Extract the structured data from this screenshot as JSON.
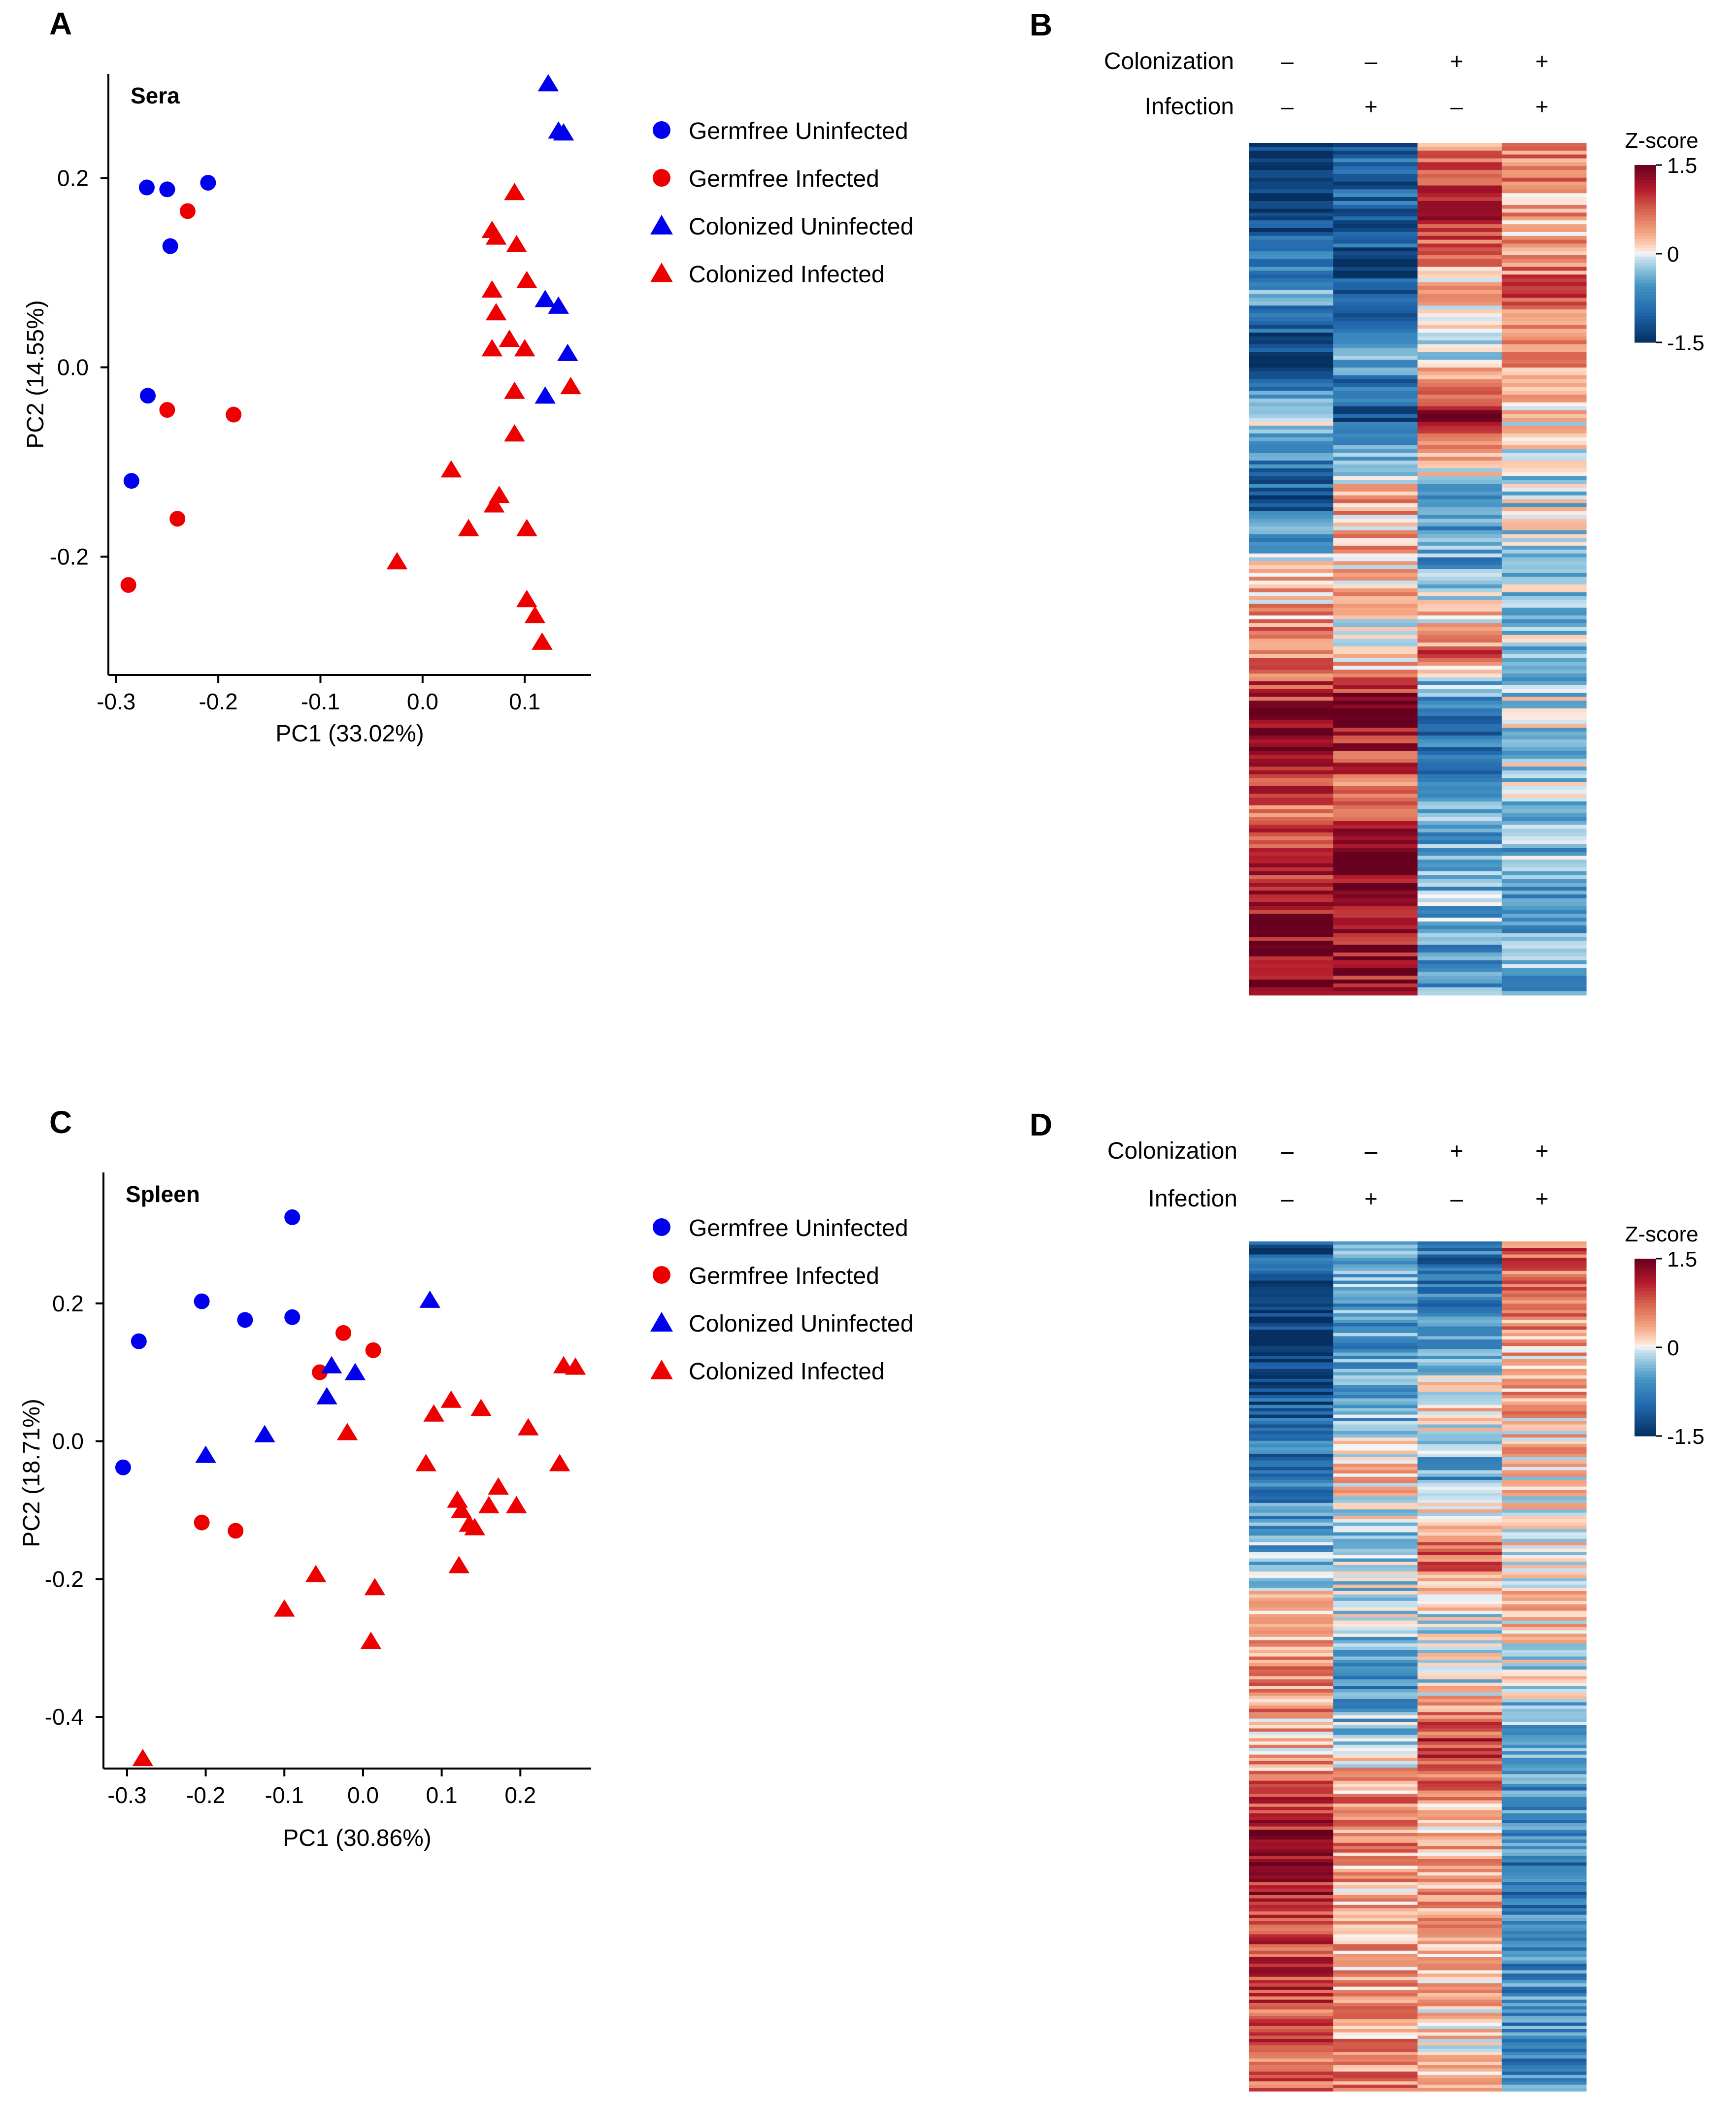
{
  "panels": {
    "A": {
      "letter": "A"
    },
    "B": {
      "letter": "B"
    },
    "C": {
      "letter": "C"
    },
    "D": {
      "letter": "D"
    }
  },
  "colors": {
    "germfree_uninfected": "#0000ee",
    "germfree_infected": "#ee0000",
    "colonized_uninfected": "#0000ee",
    "colonized_infected": "#ee0000",
    "heat_high": "#67001f",
    "heat_mid": "#f7f7f7",
    "heat_low": "#053061"
  },
  "legend": {
    "items": [
      {
        "label": "Germfree Uninfected",
        "shape": "circle",
        "color": "#0000ee"
      },
      {
        "label": "Germfree Infected",
        "shape": "circle",
        "color": "#ee0000"
      },
      {
        "label": "Colonized Uninfected",
        "shape": "triangle",
        "color": "#0000ee"
      },
      {
        "label": "Colonized Infected",
        "shape": "triangle",
        "color": "#ee0000"
      }
    ]
  },
  "chart_data": [
    {
      "panel": "A",
      "type": "scatter",
      "title": "Sera",
      "xlabel": "PC1 (33.02%)",
      "ylabel": "PC2 (14.55%)",
      "xlim": [
        -0.31,
        0.165
      ],
      "ylim": [
        -0.325,
        0.31
      ],
      "xticks": [
        -0.3,
        -0.2,
        -0.1,
        0.0,
        0.1
      ],
      "xtick_labels": [
        "-0.3",
        "-0.2",
        "-0.1",
        "0.0",
        "0.1"
      ],
      "yticks": [
        -0.2,
        0.0,
        0.2
      ],
      "ytick_labels": [
        "-0.2",
        "0.0",
        "0.2"
      ],
      "series": [
        {
          "name": "Germfree Uninfected",
          "shape": "circle",
          "color": "#0000ee",
          "x": [
            -0.27,
            -0.25,
            -0.21,
            -0.247,
            -0.269,
            -0.285
          ],
          "y": [
            0.19,
            0.188,
            0.195,
            0.128,
            -0.03,
            -0.12
          ]
        },
        {
          "name": "Germfree Infected",
          "shape": "circle",
          "color": "#ee0000",
          "x": [
            -0.23,
            -0.25,
            -0.185,
            -0.24,
            -0.288
          ],
          "y": [
            0.165,
            -0.045,
            -0.05,
            -0.16,
            -0.23
          ]
        },
        {
          "name": "Colonized Uninfected",
          "shape": "triangle",
          "color": "#0000ee",
          "x": [
            0.123,
            0.133,
            0.138,
            0.12,
            0.133,
            0.142,
            0.12
          ],
          "y": [
            0.3,
            0.25,
            0.248,
            0.072,
            0.065,
            0.015,
            -0.03
          ]
        },
        {
          "name": "Colonized Infected",
          "shape": "triangle",
          "color": "#ee0000",
          "x": [
            0.09,
            0.068,
            0.072,
            0.092,
            0.068,
            0.102,
            0.072,
            0.085,
            0.068,
            0.1,
            0.09,
            0.145,
            0.09,
            0.028,
            0.075,
            0.07,
            0.045,
            0.102,
            -0.025,
            0.102,
            0.11,
            0.117
          ],
          "y": [
            0.185,
            0.145,
            0.138,
            0.13,
            0.082,
            0.092,
            0.058,
            0.03,
            0.02,
            0.02,
            -0.025,
            -0.02,
            -0.07,
            -0.108,
            -0.135,
            -0.145,
            -0.17,
            -0.17,
            -0.205,
            -0.245,
            -0.262,
            -0.29
          ]
        }
      ]
    },
    {
      "panel": "C",
      "type": "scatter",
      "title": "Spleen",
      "xlabel": "PC1 (30.86%)",
      "ylabel": "PC2 (18.71%)",
      "xlim": [
        -0.33,
        0.29
      ],
      "ylim": [
        -0.475,
        0.39
      ],
      "xticks": [
        -0.3,
        -0.2,
        -0.1,
        0.0,
        0.1,
        0.2
      ],
      "xtick_labels": [
        "-0.3",
        "-0.2",
        "-0.1",
        "0.0",
        "0.1",
        "0.2"
      ],
      "yticks": [
        -0.4,
        -0.2,
        0.0,
        0.2
      ],
      "yticks_note": "",
      "ytick_labels": [
        "-0.4",
        "-0.2",
        "0.0",
        "0.2"
      ],
      "series": [
        {
          "name": "Germfree Uninfected",
          "shape": "circle",
          "color": "#0000ee",
          "x": [
            -0.09,
            -0.205,
            -0.09,
            -0.15,
            -0.285,
            -0.305
          ],
          "y": [
            0.325,
            0.203,
            0.18,
            0.176,
            0.145,
            -0.038
          ]
        },
        {
          "name": "Germfree Infected",
          "shape": "circle",
          "color": "#ee0000",
          "x": [
            -0.025,
            0.013,
            -0.055,
            -0.205,
            -0.162
          ],
          "y": [
            0.157,
            0.132,
            0.1,
            -0.118,
            -0.13
          ]
        },
        {
          "name": "Colonized Uninfected",
          "shape": "triangle",
          "color": "#0000ee",
          "x": [
            0.085,
            -0.04,
            -0.01,
            -0.046,
            -0.125,
            -0.2
          ],
          "y": [
            0.205,
            0.11,
            0.1,
            0.065,
            0.01,
            -0.02
          ]
        },
        {
          "name": "Colonized Infected",
          "shape": "triangle",
          "color": "#ee0000",
          "x": [
            0.255,
            0.27,
            0.112,
            0.09,
            0.15,
            0.21,
            -0.02,
            0.08,
            0.25,
            0.172,
            0.12,
            0.195,
            0.16,
            0.125,
            0.135,
            0.142,
            0.122,
            -0.06,
            0.015,
            -0.1,
            0.01,
            -0.28
          ],
          "y": [
            0.11,
            0.108,
            0.06,
            0.04,
            0.048,
            0.02,
            0.013,
            -0.032,
            -0.032,
            -0.066,
            -0.085,
            -0.093,
            -0.093,
            -0.1,
            -0.12,
            -0.125,
            -0.18,
            -0.193,
            -0.212,
            -0.243,
            -0.29,
            -0.46
          ]
        }
      ]
    },
    {
      "panel": "B",
      "type": "heatmap",
      "header_rows": [
        {
          "label": "Colonization",
          "values": [
            "–",
            "–",
            "+",
            "+"
          ]
        },
        {
          "label": "Infection",
          "values": [
            "–",
            "+",
            "–",
            "+"
          ]
        }
      ],
      "colorbar": {
        "title": "Z-score",
        "range": [
          -1.5,
          1.5
        ],
        "ticks": [
          1.5,
          0,
          -1.5
        ],
        "tick_labels": [
          "1.5",
          "0",
          "-1.5"
        ]
      },
      "columns": 4,
      "profile_rows": 220,
      "profiles": [
        [
          [
            0,
            -1.5
          ],
          [
            0.08,
            -1.4
          ],
          [
            0.18,
            -0.5
          ],
          [
            0.25,
            -1.5
          ],
          [
            0.32,
            -0.2
          ],
          [
            0.42,
            -1.2
          ],
          [
            0.5,
            0.2
          ],
          [
            0.6,
            0.6
          ],
          [
            0.7,
            1.4
          ],
          [
            0.78,
            0.6
          ],
          [
            0.85,
            1.1
          ],
          [
            1,
            1.5
          ]
        ],
        [
          [
            0,
            -1.1
          ],
          [
            0.08,
            -1.0
          ],
          [
            0.18,
            -1.3
          ],
          [
            0.25,
            -0.6
          ],
          [
            0.32,
            -1.2
          ],
          [
            0.42,
            0.4
          ],
          [
            0.5,
            0.3
          ],
          [
            0.6,
            0.0
          ],
          [
            0.66,
            1.4
          ],
          [
            0.75,
            0.7
          ],
          [
            0.85,
            1.4
          ],
          [
            1,
            1.2
          ]
        ],
        [
          [
            0,
            0.6
          ],
          [
            0.08,
            1.0
          ],
          [
            0.18,
            0.2
          ],
          [
            0.25,
            -0.2
          ],
          [
            0.32,
            1.4
          ],
          [
            0.42,
            -0.6
          ],
          [
            0.5,
            -0.5
          ],
          [
            0.6,
            0.7
          ],
          [
            0.66,
            -0.9
          ],
          [
            0.75,
            -0.7
          ],
          [
            0.85,
            -0.3
          ],
          [
            1,
            -0.6
          ]
        ],
        [
          [
            0,
            0.6
          ],
          [
            0.08,
            0.3
          ],
          [
            0.18,
            0.8
          ],
          [
            0.25,
            0.5
          ],
          [
            0.32,
            0.0
          ],
          [
            0.42,
            -0.1
          ],
          [
            0.5,
            -0.1
          ],
          [
            0.6,
            -0.3
          ],
          [
            0.66,
            -0.1
          ],
          [
            0.75,
            -0.2
          ],
          [
            0.85,
            -0.4
          ],
          [
            1,
            -0.4
          ]
        ]
      ]
    },
    {
      "panel": "D",
      "type": "heatmap",
      "header_rows": [
        {
          "label": "Colonization",
          "values": [
            "–",
            "–",
            "+",
            "+"
          ]
        },
        {
          "label": "Infection",
          "values": [
            "–",
            "+",
            "–",
            "+"
          ]
        }
      ],
      "colorbar": {
        "title": "Z-score",
        "range": [
          -1.5,
          1.5
        ],
        "ticks": [
          1.5,
          0,
          -1.5
        ],
        "tick_labels": [
          "1.5",
          "0",
          "-1.5"
        ]
      },
      "columns": 4,
      "profile_rows": 260,
      "profiles": [
        [
          [
            0,
            -1.0
          ],
          [
            0.05,
            -1.3
          ],
          [
            0.12,
            -1.5
          ],
          [
            0.2,
            -1.0
          ],
          [
            0.28,
            -0.8
          ],
          [
            0.36,
            -0.4
          ],
          [
            0.44,
            0.2
          ],
          [
            0.52,
            0.6
          ],
          [
            0.6,
            0.2
          ],
          [
            0.68,
            1.2
          ],
          [
            0.8,
            1.0
          ],
          [
            0.9,
            0.8
          ],
          [
            1,
            0.7
          ]
        ],
        [
          [
            0,
            -0.3
          ],
          [
            0.05,
            -0.4
          ],
          [
            0.12,
            -0.6
          ],
          [
            0.2,
            -0.5
          ],
          [
            0.28,
            0.3
          ],
          [
            0.36,
            -0.3
          ],
          [
            0.44,
            -0.1
          ],
          [
            0.52,
            -0.8
          ],
          [
            0.6,
            0.1
          ],
          [
            0.68,
            0.6
          ],
          [
            0.8,
            0.3
          ],
          [
            0.9,
            0.4
          ],
          [
            1,
            0.5
          ]
        ],
        [
          [
            0,
            -0.9
          ],
          [
            0.05,
            -0.8
          ],
          [
            0.12,
            -0.4
          ],
          [
            0.2,
            0.2
          ],
          [
            0.28,
            -0.6
          ],
          [
            0.36,
            0.8
          ],
          [
            0.44,
            0.0
          ],
          [
            0.52,
            -0.1
          ],
          [
            0.6,
            1.1
          ],
          [
            0.68,
            0.2
          ],
          [
            0.8,
            0.4
          ],
          [
            0.9,
            0.2
          ],
          [
            1,
            0.1
          ]
        ],
        [
          [
            0,
            0.7
          ],
          [
            0.05,
            0.6
          ],
          [
            0.12,
            0.4
          ],
          [
            0.2,
            0.3
          ],
          [
            0.28,
            0.1
          ],
          [
            0.36,
            0.0
          ],
          [
            0.44,
            0.2
          ],
          [
            0.52,
            -0.1
          ],
          [
            0.6,
            -0.4
          ],
          [
            0.68,
            -0.7
          ],
          [
            0.8,
            -0.8
          ],
          [
            0.9,
            -0.6
          ],
          [
            1,
            -0.7
          ]
        ]
      ]
    }
  ]
}
